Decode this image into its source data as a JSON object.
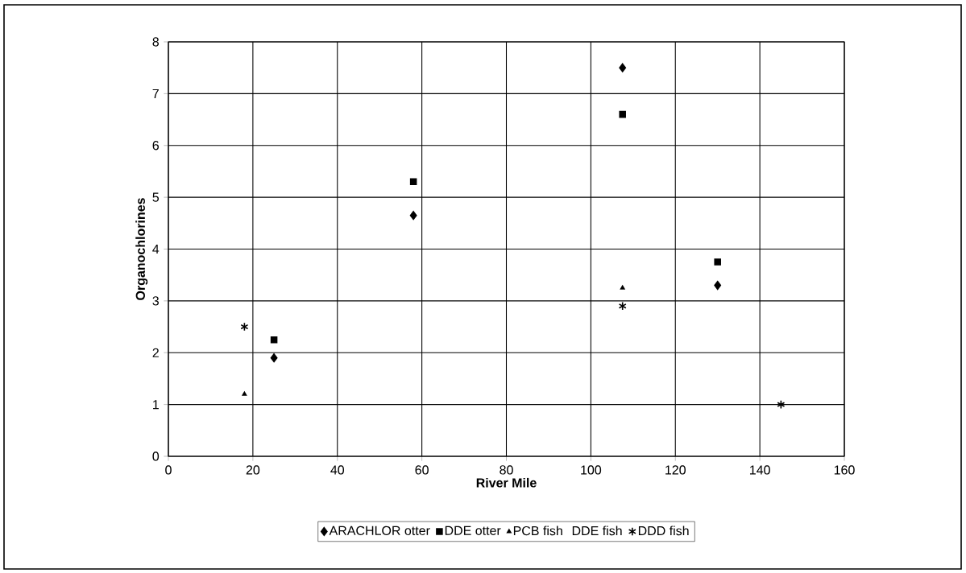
{
  "chart_data": {
    "type": "scatter",
    "xlabel": "River Mile",
    "ylabel": "Organochlorines",
    "xlim": [
      0,
      160
    ],
    "xticks": [
      0,
      20,
      40,
      60,
      80,
      100,
      120,
      140,
      160
    ],
    "ylim": [
      0,
      8
    ],
    "yticks": [
      0,
      1,
      2,
      3,
      4,
      5,
      6,
      7,
      8
    ],
    "grid": true,
    "legend": "bottom",
    "series": [
      {
        "name": "ARACHLOR otter",
        "color": "#000000",
        "marker": "diamond",
        "x": [
          25,
          58,
          107.5,
          130
        ],
        "values": [
          1.9,
          4.65,
          7.5,
          3.3
        ]
      },
      {
        "name": "DDE otter",
        "color": "#000000",
        "marker": "square",
        "x": [
          25,
          58,
          107.5,
          130
        ],
        "values": [
          2.25,
          5.3,
          6.6,
          3.75
        ]
      },
      {
        "name": "PCB fish",
        "color": "#000000",
        "marker": "triangle",
        "x": [
          18,
          107.5
        ],
        "values": [
          1.2,
          3.25
        ]
      },
      {
        "name": "DDE fish",
        "color": "#000000",
        "marker": "none"
      },
      {
        "name": "DDD fish",
        "color": "#000000",
        "marker": "cross",
        "x": [
          18,
          107.5,
          145
        ],
        "values": [
          2.5,
          2.9,
          1.0
        ]
      }
    ]
  }
}
